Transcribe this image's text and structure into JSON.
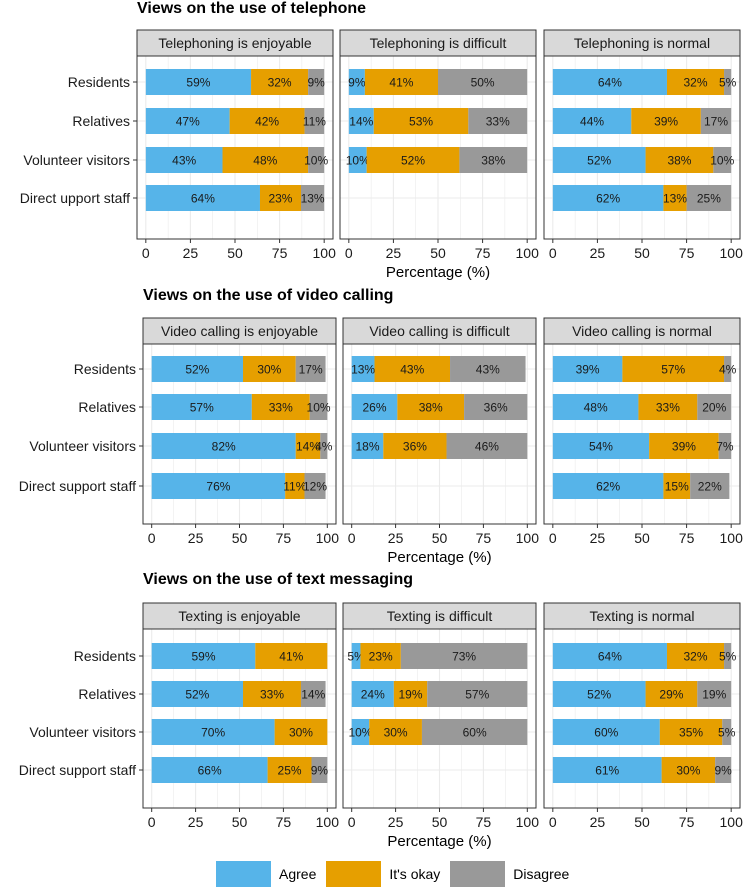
{
  "colors": {
    "agree": "#56B4E9",
    "okay": "#E69F00",
    "disagree": "#999999",
    "strip": "#d9d9d9",
    "grid": "#ebebeb"
  },
  "legend": [
    {
      "label": "Agree",
      "color": "#56B4E9"
    },
    {
      "label": "It's okay",
      "color": "#E69F00"
    },
    {
      "label": "Disagree",
      "color": "#999999"
    }
  ],
  "chart_data": [
    {
      "type": "bar",
      "title": "Views on the use of telephone",
      "xlabel": "Percentage (%)",
      "xlim": [
        0,
        100
      ],
      "xticks": [
        "0",
        "25",
        "50",
        "75",
        "100"
      ],
      "categories": [
        "Residents",
        "Relatives",
        "Volunteer visitors",
        "Direct upport staff"
      ],
      "series_names": [
        "Agree",
        "It's okay",
        "Disagree"
      ],
      "panels": [
        {
          "title": "Telephoning is enjoyable",
          "values": [
            [
              59,
              32,
              9
            ],
            [
              47,
              42,
              11
            ],
            [
              43,
              48,
              10
            ],
            [
              64,
              23,
              13
            ]
          ]
        },
        {
          "title": "Telephoning is difficult",
          "values": [
            [
              9,
              41,
              50
            ],
            [
              14,
              53,
              33
            ],
            [
              10,
              52,
              38
            ],
            [
              null,
              null,
              null
            ]
          ]
        },
        {
          "title": "Telephoning is normal",
          "values": [
            [
              64,
              32,
              5
            ],
            [
              44,
              39,
              17
            ],
            [
              52,
              38,
              10
            ],
            [
              62,
              13,
              25
            ]
          ]
        }
      ]
    },
    {
      "type": "bar",
      "title": "Views on the use of video calling",
      "xlabel": "Percentage (%)",
      "xlim": [
        0,
        100
      ],
      "xticks": [
        "0",
        "25",
        "50",
        "75",
        "100"
      ],
      "categories": [
        "Residents",
        "Relatives",
        "Volunteer visitors",
        "Direct support staff"
      ],
      "series_names": [
        "Agree",
        "It's okay",
        "Disagree"
      ],
      "panels": [
        {
          "title": "Video calling is enjoyable",
          "values": [
            [
              52,
              30,
              17
            ],
            [
              57,
              33,
              10
            ],
            [
              82,
              14,
              4
            ],
            [
              76,
              11,
              12
            ]
          ]
        },
        {
          "title": "Video calling is difficult",
          "values": [
            [
              13,
              43,
              43
            ],
            [
              26,
              38,
              36
            ],
            [
              18,
              36,
              46
            ],
            [
              null,
              null,
              null
            ]
          ]
        },
        {
          "title": "Video calling is normal",
          "values": [
            [
              39,
              57,
              4
            ],
            [
              48,
              33,
              20
            ],
            [
              54,
              39,
              7
            ],
            [
              62,
              15,
              22
            ]
          ]
        }
      ]
    },
    {
      "type": "bar",
      "title": "Views on the use of text messaging",
      "xlabel": "Percentage (%)",
      "xlim": [
        0,
        100
      ],
      "xticks": [
        "0",
        "25",
        "50",
        "75",
        "100"
      ],
      "categories": [
        "Residents",
        "Relatives",
        "Volunteer visitors",
        "Direct support staff"
      ],
      "series_names": [
        "Agree",
        "It's okay",
        "Disagree"
      ],
      "panels": [
        {
          "title": "Texting is enjoyable",
          "values": [
            [
              59,
              41,
              null
            ],
            [
              52,
              33,
              14
            ],
            [
              70,
              30,
              null
            ],
            [
              66,
              25,
              9
            ]
          ]
        },
        {
          "title": "Texting is difficult",
          "values": [
            [
              5,
              23,
              73
            ],
            [
              24,
              19,
              57
            ],
            [
              10,
              30,
              60
            ],
            [
              null,
              null,
              null
            ]
          ]
        },
        {
          "title": "Texting is normal",
          "values": [
            [
              64,
              32,
              5
            ],
            [
              52,
              29,
              19
            ],
            [
              60,
              35,
              5
            ],
            [
              61,
              30,
              9
            ]
          ]
        }
      ]
    }
  ]
}
